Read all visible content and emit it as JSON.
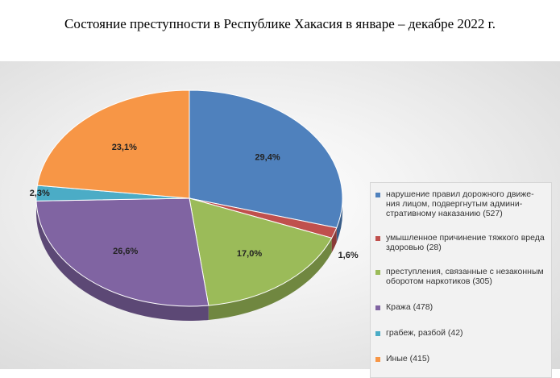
{
  "title": "Состояние преступности в Республике Хакасия в январе – декабре 2022 г.",
  "chart_data": {
    "type": "pie",
    "style": "3d",
    "legend_position": "right",
    "slices": [
      {
        "label": "нарушение правил дорожного движе-ния лицом, подвергнутым админи-стративному наказанию (527)",
        "value": 29.4,
        "value_label": "29,4%",
        "color": "#4F81BD"
      },
      {
        "label": "умышленное причинение тяжкого вреда здоровью (28)",
        "value": 1.6,
        "value_label": "1,6%",
        "color": "#C0504D"
      },
      {
        "label": "преступления, связанные с незаконным оборотом наркотиков (305)",
        "value": 17.0,
        "value_label": "17,0%",
        "color": "#9BBB59"
      },
      {
        "label": "Кража (478)",
        "value": 26.6,
        "value_label": "26,6%",
        "color": "#8064A2"
      },
      {
        "label": "грабеж, разбой (42)",
        "value": 2.3,
        "value_label": "2,3%",
        "color": "#4BACC6"
      },
      {
        "label": "Иные (415)",
        "value": 23.1,
        "value_label": "23,1%",
        "color": "#F79646"
      }
    ]
  }
}
